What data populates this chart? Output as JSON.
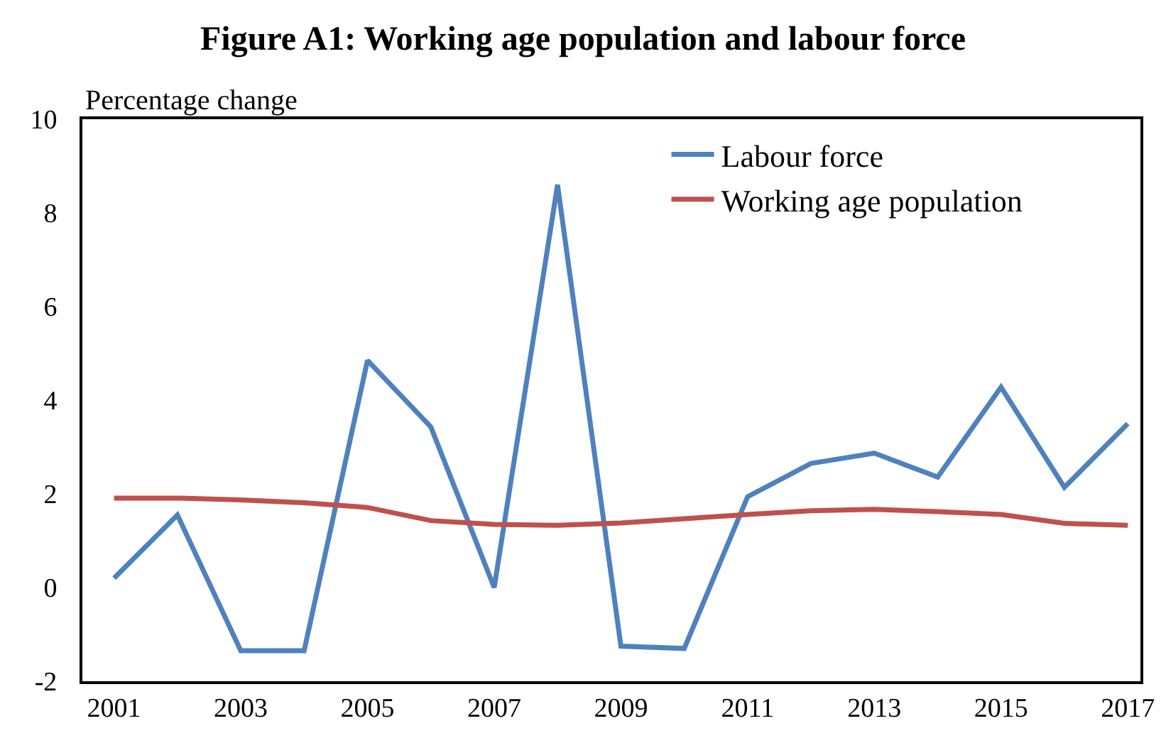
{
  "chart_data": {
    "type": "line",
    "title": "Figure A1: Working age population and labour force",
    "ylabel": "Percentage change",
    "x": [
      2001,
      2002,
      2003,
      2004,
      2005,
      2006,
      2007,
      2008,
      2009,
      2010,
      2011,
      2012,
      2013,
      2014,
      2015,
      2016,
      2017
    ],
    "series": [
      {
        "name": "Labour force",
        "color": "#4f81bd",
        "values": [
          0.2,
          1.55,
          -1.35,
          -1.35,
          4.85,
          3.43,
          0.0,
          8.6,
          -1.25,
          -1.3,
          1.94,
          2.65,
          2.87,
          2.36,
          4.28,
          2.14,
          3.5
        ]
      },
      {
        "name": "Working age population",
        "color": "#c0504d",
        "values": [
          1.91,
          1.91,
          1.87,
          1.81,
          1.71,
          1.43,
          1.35,
          1.33,
          1.38,
          1.47,
          1.56,
          1.64,
          1.67,
          1.62,
          1.56,
          1.37,
          1.33
        ]
      }
    ],
    "xlim": [
      2000.5,
      2017.2
    ],
    "xticks": [
      2001,
      2003,
      2005,
      2007,
      2009,
      2011,
      2013,
      2015,
      2017
    ],
    "ylim": [
      -2,
      10
    ],
    "yticks": [
      -2,
      0,
      2,
      4,
      6,
      8,
      10
    ],
    "legend": "top right",
    "marker": "none",
    "line_style": "solid"
  }
}
